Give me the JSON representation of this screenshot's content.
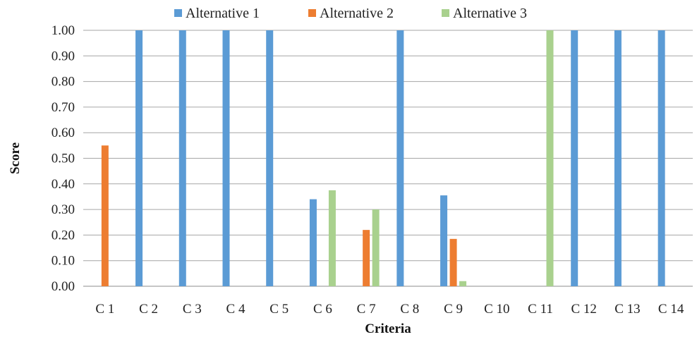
{
  "chart_data": {
    "type": "bar",
    "title": "",
    "xlabel": "Criteria",
    "ylabel": "Score",
    "ylim": [
      0,
      1
    ],
    "yticks": [
      "0.00",
      "0.10",
      "0.20",
      "0.30",
      "0.40",
      "0.50",
      "0.60",
      "0.70",
      "0.80",
      "0.90",
      "1.00"
    ],
    "grid": true,
    "legend_position": "top",
    "categories": [
      "C 1",
      "C 2",
      "C 3",
      "C 4",
      "C 5",
      "C 6",
      "C 7",
      "C 8",
      "C 9",
      "C 10",
      "C 11",
      "C 12",
      "C 13",
      "C 14"
    ],
    "series": [
      {
        "name": "Alternative 1",
        "color": "#5b9bd5",
        "values": [
          0,
          1.0,
          1.0,
          1.0,
          1.0,
          0.34,
          0,
          1.0,
          0.355,
          0,
          0,
          1.0,
          1.0,
          1.0
        ]
      },
      {
        "name": "Alternative 2",
        "color": "#ed7d31",
        "values": [
          0.55,
          0,
          0,
          0,
          0,
          0,
          0.22,
          0,
          0.185,
          0,
          0,
          0,
          0,
          0
        ]
      },
      {
        "name": "Alternative 3",
        "color": "#a9d18e",
        "values": [
          0,
          0,
          0,
          0,
          0,
          0.375,
          0.3,
          0,
          0.02,
          0,
          1.0,
          0,
          0,
          0
        ]
      }
    ]
  }
}
